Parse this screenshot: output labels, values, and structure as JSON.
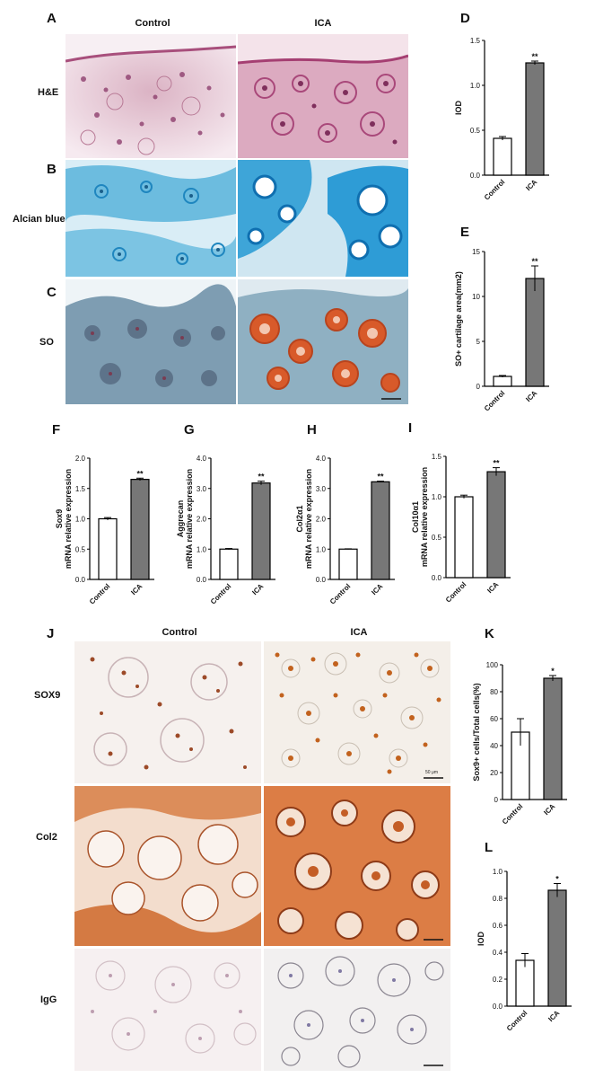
{
  "panel_letters": [
    "A",
    "B",
    "C",
    "D",
    "E",
    "F",
    "G",
    "H",
    "I",
    "J",
    "K",
    "L"
  ],
  "top_columns": {
    "control": "Control",
    "ica": "ICA"
  },
  "top_rows": {
    "he": "H&E",
    "alcian": "Alcian blue",
    "so": "SO"
  },
  "bottom_columns": {
    "control": "Control",
    "ica": "ICA"
  },
  "bottom_rows": {
    "sox9": "SOX9",
    "col2": "Col2",
    "igg": "IgG"
  },
  "scale_bar_label": "50 μm",
  "colors": {
    "control_bar": "#ffffff",
    "ica_bar": "#777777",
    "he_bg": "#e7c6d2",
    "alcian_bg": "#9bcfe8",
    "so_bg": "#8ea7b8",
    "stain_orange": "#d85a2a",
    "ihc_bg": "#f4ece6"
  },
  "chart_data": [
    {
      "id": "D",
      "type": "bar",
      "categories": [
        "Control",
        "ICA"
      ],
      "values": [
        0.41,
        1.25
      ],
      "errors": [
        0.02,
        0.02
      ],
      "significance": [
        "",
        "**"
      ],
      "ylabel": "IOD",
      "ylim": [
        0,
        1.5
      ],
      "yticks": [
        "0.0",
        "0.5",
        "1.0",
        "1.5"
      ]
    },
    {
      "id": "E",
      "type": "bar",
      "categories": [
        "Control",
        "ICA"
      ],
      "values": [
        1.1,
        12.0
      ],
      "errors": [
        0.1,
        1.4
      ],
      "significance": [
        "",
        "**"
      ],
      "ylabel": "SO+ cartilage area(mm2)",
      "ylim": [
        0,
        15
      ],
      "yticks": [
        "0",
        "5",
        "10",
        "15"
      ]
    },
    {
      "id": "F",
      "type": "bar",
      "categories": [
        "Control",
        "ICA"
      ],
      "values": [
        1.0,
        1.65
      ],
      "errors": [
        0.02,
        0.02
      ],
      "significance": [
        "",
        "**"
      ],
      "ylabel": "Sox9 mRNA relative expression",
      "ylim": [
        0,
        2.0
      ],
      "yticks": [
        "0.0",
        "0.5",
        "1.0",
        "1.5",
        "2.0"
      ]
    },
    {
      "id": "G",
      "type": "bar",
      "categories": [
        "Control",
        "ICA"
      ],
      "values": [
        1.0,
        3.18
      ],
      "errors": [
        0.02,
        0.06
      ],
      "significance": [
        "",
        "**"
      ],
      "ylabel": "Aggrecan mRNA relative expression",
      "ylim": [
        0,
        4.0
      ],
      "yticks": [
        "0.0",
        "1.0",
        "2.0",
        "3.0",
        "4.0"
      ]
    },
    {
      "id": "H",
      "type": "bar",
      "categories": [
        "Control",
        "ICA"
      ],
      "values": [
        1.0,
        3.22
      ],
      "errors": [
        0.01,
        0.02
      ],
      "significance": [
        "",
        "**"
      ],
      "ylabel": "Col2α1 mRNA relative expression",
      "ylim": [
        0,
        4.0
      ],
      "yticks": [
        "0.0",
        "1.0",
        "2.0",
        "3.0",
        "4.0"
      ]
    },
    {
      "id": "I",
      "type": "bar",
      "categories": [
        "Control",
        "ICA"
      ],
      "values": [
        1.0,
        1.31
      ],
      "errors": [
        0.02,
        0.05
      ],
      "significance": [
        "",
        "**"
      ],
      "ylabel": "Col10α1 mRNA relative expression",
      "ylim": [
        0,
        1.5
      ],
      "yticks": [
        "0.0",
        "0.5",
        "1.0",
        "1.5"
      ]
    },
    {
      "id": "K",
      "type": "bar",
      "categories": [
        "Control",
        "ICA"
      ],
      "values": [
        50,
        90
      ],
      "errors": [
        10,
        2
      ],
      "significance": [
        "",
        "*"
      ],
      "ylabel": "Sox9+ cells/Total cells(%)",
      "ylim": [
        0,
        100
      ],
      "yticks": [
        "0",
        "20",
        "40",
        "60",
        "80",
        "100"
      ]
    },
    {
      "id": "L",
      "type": "bar",
      "categories": [
        "Control",
        "ICA"
      ],
      "values": [
        0.34,
        0.86
      ],
      "errors": [
        0.05,
        0.05
      ],
      "significance": [
        "",
        "*"
      ],
      "ylabel": "IOD",
      "ylim": [
        0,
        1.0
      ],
      "yticks": [
        "0.0",
        "0.2",
        "0.4",
        "0.6",
        "0.8",
        "1.0"
      ]
    }
  ]
}
